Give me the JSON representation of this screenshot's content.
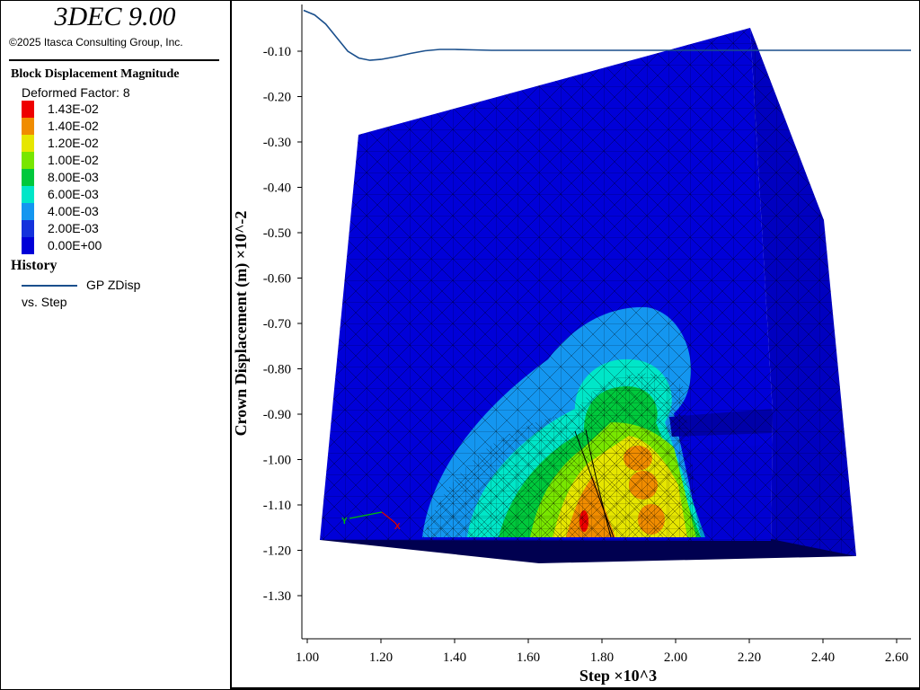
{
  "app": {
    "title": "3DEC 9.00",
    "copyright": "©2025 Itasca Consulting Group, Inc."
  },
  "legend": {
    "title": "Block  Displacement Magnitude",
    "deformed_factor": "Deformed Factor: 8",
    "contours": [
      {
        "label": "1.43E-02",
        "color": "#ee0000"
      },
      {
        "label": "1.40E-02",
        "color": "#f08c00"
      },
      {
        "label": "1.20E-02",
        "color": "#e6e600"
      },
      {
        "label": "1.00E-02",
        "color": "#78e600"
      },
      {
        "label": "8.00E-03",
        "color": "#00c83c"
      },
      {
        "label": "6.00E-03",
        "color": "#00e6c8"
      },
      {
        "label": "4.00E-03",
        "color": "#1496f0"
      },
      {
        "label": "2.00E-03",
        "color": "#1432dc"
      },
      {
        "label": "0.00E+00",
        "color": "#0000d8"
      }
    ]
  },
  "history": {
    "title": "History",
    "series_label": "GP ZDisp",
    "vs_label": "vs. Step"
  },
  "triad": {
    "y": "Y",
    "x": "X"
  },
  "chart_data": {
    "type": "line",
    "xlabel": "Step ×10^3",
    "ylabel": "Crown Displacement (m) ×10^-2",
    "xlim": [
      1.0,
      2.65
    ],
    "ylim": [
      -1.4,
      -0.0
    ],
    "xticks": [
      "1.00",
      "1.20",
      "1.40",
      "1.60",
      "1.80",
      "2.00",
      "2.20",
      "2.40",
      "2.60"
    ],
    "yticks": [
      "-0.10",
      "-0.20",
      "-0.30",
      "-0.40",
      "-0.50",
      "-0.60",
      "-0.70",
      "-0.80",
      "-0.90",
      "-1.00",
      "-1.10",
      "-1.20",
      "-1.30"
    ],
    "series": [
      {
        "name": "GP ZDisp",
        "color": "#1a4f8c",
        "x": [
          0.99,
          1.02,
          1.05,
          1.08,
          1.11,
          1.14,
          1.17,
          1.2,
          1.24,
          1.28,
          1.32,
          1.36,
          1.4,
          1.45,
          1.5,
          1.6,
          1.8,
          2.0,
          2.2,
          2.4,
          2.65
        ],
        "y": [
          -0.01,
          -0.02,
          -0.04,
          -0.07,
          -0.1,
          -0.115,
          -0.12,
          -0.118,
          -0.112,
          -0.105,
          -0.099,
          -0.096,
          -0.096,
          -0.097,
          -0.098,
          -0.098,
          -0.098,
          -0.098,
          -0.098,
          -0.098,
          -0.098
        ]
      }
    ]
  }
}
